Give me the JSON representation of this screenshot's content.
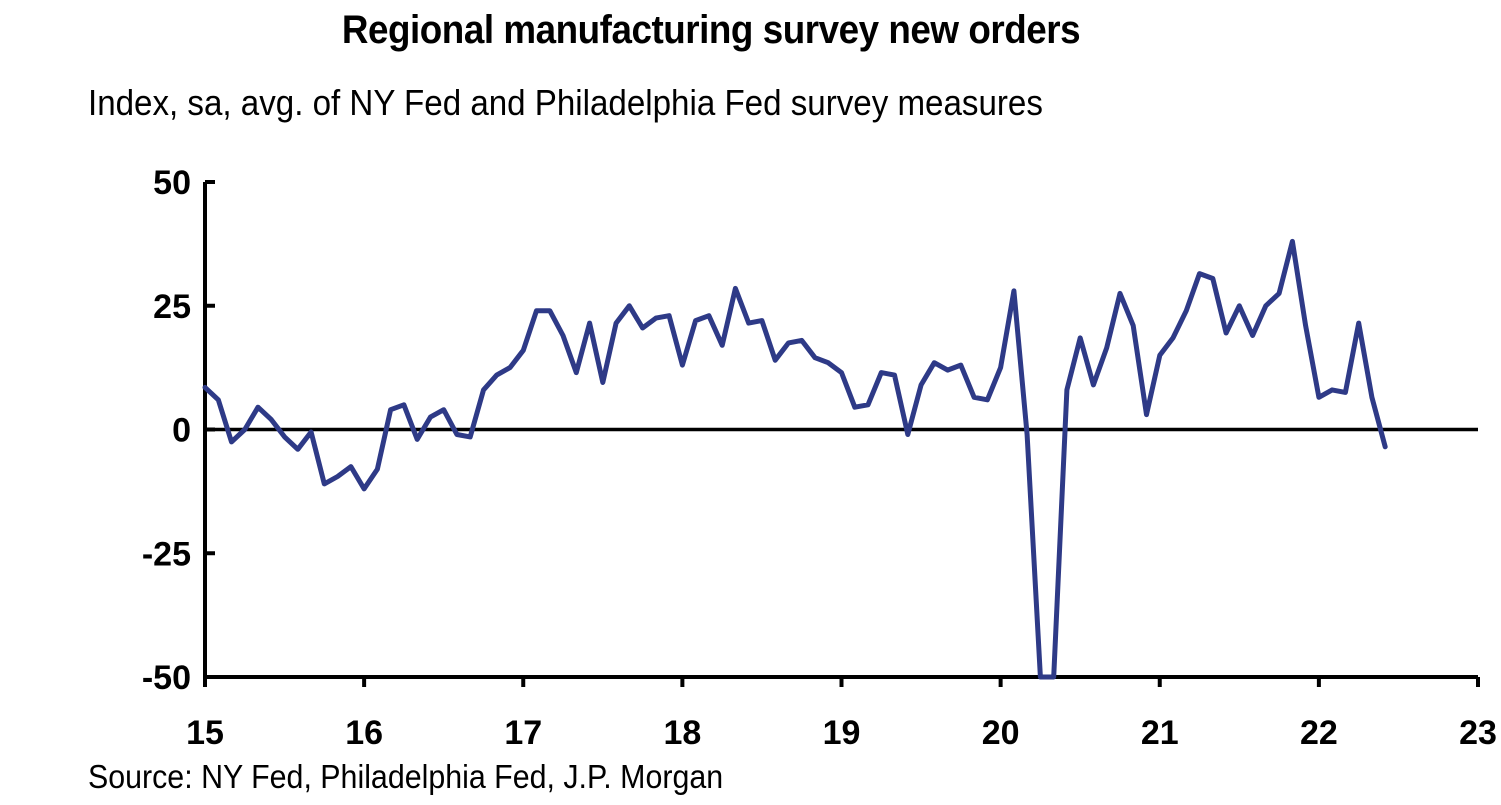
{
  "title": "Regional manufacturing survey new orders",
  "subtitle": "Index, sa, avg. of NY Fed and Philadelphia Fed survey measures",
  "source": "Source: NY Fed, Philadelphia Fed, J.P. Morgan",
  "chart_data": {
    "type": "line",
    "title": "Regional manufacturing survey new orders",
    "subtitle": "Index, sa, avg. of NY Fed and Philadelphia Fed survey measures",
    "xlabel": "",
    "ylabel": "",
    "xlim": [
      15,
      23
    ],
    "ylim": [
      -50,
      50
    ],
    "x_ticks": [
      "15",
      "16",
      "17",
      "18",
      "19",
      "20",
      "21",
      "22",
      "23"
    ],
    "y_ticks": [
      "50",
      "25",
      "0",
      "-25",
      "-50"
    ],
    "grid": false,
    "zero_line": true,
    "line_color": "#2e3a87",
    "series": [
      {
        "start_year": 2015,
        "start_month": 1,
        "frequency": "monthly",
        "values": [
          8.5,
          6,
          -2.5,
          0,
          4.5,
          2,
          -1.5,
          -4,
          -0.5,
          -11,
          -9.5,
          -7.5,
          -12,
          -8,
          4,
          5,
          -2,
          2.5,
          4,
          -1,
          -1.5,
          8,
          11,
          12.5,
          16,
          24,
          24,
          19,
          11.5,
          21.5,
          9.5,
          21.5,
          25,
          20.5,
          22.5,
          23,
          13,
          22,
          23,
          17,
          28.5,
          21.5,
          22,
          14,
          17.5,
          18,
          14.5,
          13.5,
          11.5,
          4.5,
          5,
          11.5,
          11,
          -1,
          9,
          13.5,
          12,
          13,
          6.5,
          6,
          12.5,
          28,
          -1,
          -50,
          -50,
          8,
          18.5,
          9,
          16.5,
          27.5,
          21,
          3,
          15,
          18.5,
          24,
          31.5,
          30.5,
          19.5,
          25,
          19,
          25,
          27.5,
          38,
          21,
          6.5,
          8,
          7.5,
          21.5,
          6.5,
          -3.5
        ]
      }
    ]
  }
}
